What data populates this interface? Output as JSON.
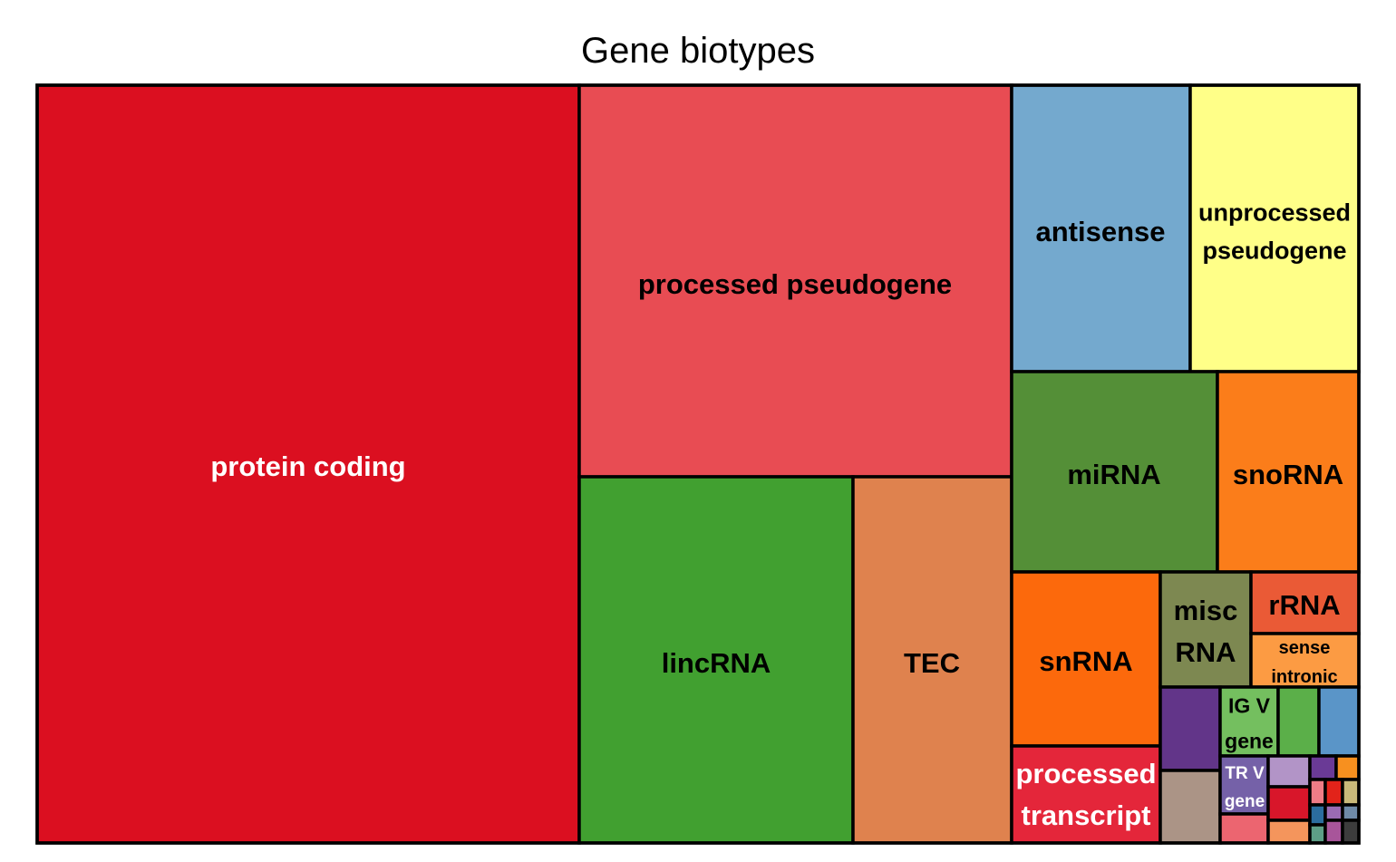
{
  "chart_data": {
    "type": "treemap",
    "title": "Gene biotypes",
    "tiles": [
      {
        "label": "protein coding",
        "color": "#DB0F20",
        "label_color": "#ffffff"
      },
      {
        "label": "processed pseudogene",
        "color": "#E84C53",
        "label_color": "#000000"
      },
      {
        "label": "lincRNA",
        "color": "#41A030",
        "label_color": "#000000"
      },
      {
        "label": "TEC",
        "color": "#DF824E",
        "label_color": "#000000"
      },
      {
        "label": "antisense",
        "color": "#74A9CE",
        "label_color": "#000000"
      },
      {
        "label": "unprocessed pseudogene",
        "color": "#FFFF88",
        "label_color": "#000000"
      },
      {
        "label": "miRNA",
        "color": "#548F37",
        "label_color": "#000000"
      },
      {
        "label": "snoRNA",
        "color": "#FB7D1A",
        "label_color": "#000000"
      },
      {
        "label": "snRNA",
        "color": "#FC690C",
        "label_color": "#000000"
      },
      {
        "label": "processed transcript",
        "color": "#E4263A",
        "label_color": "#ffffff"
      },
      {
        "label": "misc RNA",
        "color": "#7D8851",
        "label_color": "#000000"
      },
      {
        "label": "rRNA",
        "color": "#EA5A36",
        "label_color": "#000000"
      },
      {
        "label": "sense intronic",
        "color": "#FC9B43",
        "label_color": "#000000"
      },
      {
        "label": "",
        "color": "#623589",
        "label_color": "#000000"
      },
      {
        "label": "",
        "color": "#AB9486",
        "label_color": "#000000"
      },
      {
        "label": "IG V gene",
        "color": "#74BF5F",
        "label_color": "#000000"
      },
      {
        "label": "",
        "color": "#5BAF49",
        "label_color": "#000000"
      },
      {
        "label": "",
        "color": "#5A95C8",
        "label_color": "#000000"
      },
      {
        "label": "TR V gene",
        "color": "#7561A8",
        "label_color": "#ffffff"
      },
      {
        "label": "",
        "color": "#EC6570",
        "label_color": "#000000"
      },
      {
        "label": "",
        "color": "#B294C7",
        "label_color": "#000000"
      },
      {
        "label": "",
        "color": "#D8162A",
        "label_color": "#000000"
      },
      {
        "label": "",
        "color": "#F4955C",
        "label_color": "#000000"
      },
      {
        "label": "",
        "color": "#6A3A96",
        "label_color": "#000000"
      },
      {
        "label": "",
        "color": "#F7901F",
        "label_color": "#000000"
      },
      {
        "label": "",
        "color": "#EE7C86",
        "label_color": "#000000"
      },
      {
        "label": "",
        "color": "#E2231A",
        "label_color": "#000000"
      },
      {
        "label": "",
        "color": "#C9B97A",
        "label_color": "#000000"
      },
      {
        "label": "",
        "color": "#2B6D9E",
        "label_color": "#000000"
      },
      {
        "label": "",
        "color": "#9A6BB3",
        "label_color": "#000000"
      },
      {
        "label": "",
        "color": "#6E8AA8",
        "label_color": "#000000"
      },
      {
        "label": "",
        "color": "#5D9E86",
        "label_color": "#000000"
      },
      {
        "label": "",
        "color": "#A8559A",
        "label_color": "#000000"
      },
      {
        "label": "",
        "color": "#3C3C3C",
        "label_color": "#000000"
      }
    ]
  }
}
